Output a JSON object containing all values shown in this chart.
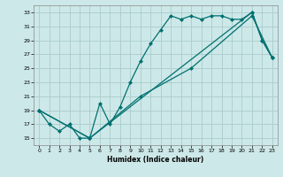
{
  "xlabel": "Humidex (Indice chaleur)",
  "background_color": "#cde8e8",
  "grid_color": "#aacccc",
  "line_color": "#007070",
  "xlim": [
    -0.5,
    23.5
  ],
  "ylim": [
    14.0,
    34.0
  ],
  "xticks": [
    0,
    1,
    2,
    3,
    4,
    5,
    6,
    7,
    8,
    9,
    10,
    11,
    12,
    13,
    14,
    15,
    16,
    17,
    18,
    19,
    20,
    21,
    22,
    23
  ],
  "yticks": [
    15,
    17,
    19,
    21,
    23,
    25,
    27,
    29,
    31,
    33
  ],
  "line1_x": [
    0,
    1,
    2,
    3,
    4,
    5,
    6,
    7,
    8,
    9,
    10,
    11,
    12,
    13,
    14,
    15,
    16,
    17,
    18,
    19,
    20,
    21,
    22,
    23
  ],
  "line1_y": [
    19,
    17,
    16,
    17,
    15,
    15,
    20,
    17,
    19.5,
    23,
    26,
    28.5,
    30.5,
    32.5,
    32,
    32.5,
    32,
    32.5,
    32.5,
    32,
    32,
    33,
    29,
    26.5
  ],
  "line2_x": [
    0,
    5,
    21,
    22,
    23
  ],
  "line2_y": [
    19,
    15,
    33,
    29,
    26.5
  ],
  "line3_x": [
    0,
    5,
    10,
    15,
    21,
    23
  ],
  "line3_y": [
    19,
    15,
    21,
    25,
    32.5,
    26.5
  ],
  "marker_size": 2.5,
  "line_width": 0.9
}
